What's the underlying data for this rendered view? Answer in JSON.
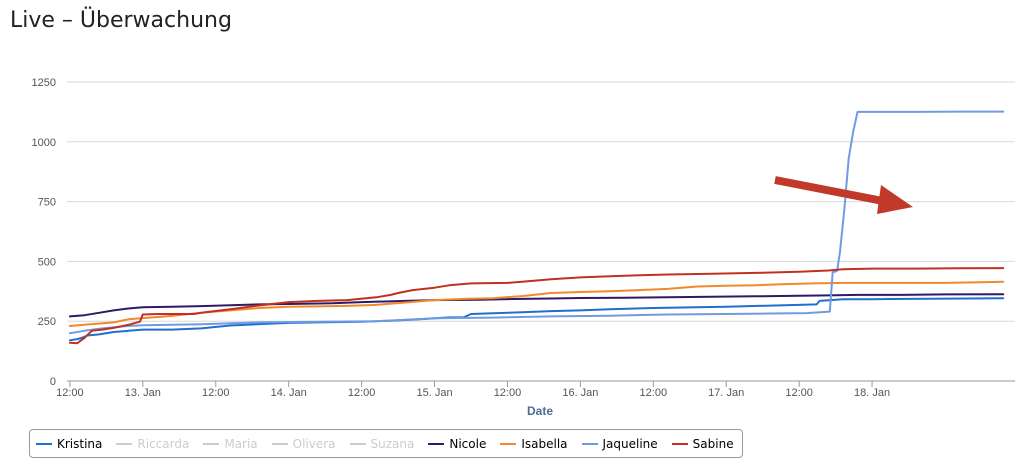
{
  "page": {
    "title": "Live – Überwachung"
  },
  "chart_data": {
    "type": "line",
    "xlabel": "Date",
    "ylabel": "",
    "ylim": [
      0,
      1300
    ],
    "y_ticks": [
      0,
      250,
      500,
      750,
      1000,
      1250
    ],
    "x_ticks": [
      {
        "t": 12.5,
        "label": "12:00"
      },
      {
        "t": 13.0,
        "label": "13. Jan"
      },
      {
        "t": 13.5,
        "label": "12:00"
      },
      {
        "t": 14.0,
        "label": "14. Jan"
      },
      {
        "t": 14.5,
        "label": "12:00"
      },
      {
        "t": 15.0,
        "label": "15. Jan"
      },
      {
        "t": 15.5,
        "label": "12:00"
      },
      {
        "t": 16.0,
        "label": "16. Jan"
      },
      {
        "t": 16.5,
        "label": "12:00"
      },
      {
        "t": 17.0,
        "label": "17. Jan"
      },
      {
        "t": 17.5,
        "label": "12:00"
      },
      {
        "t": 18.0,
        "label": "18. Jan"
      }
    ],
    "xlim": [
      12.48,
      18.98
    ],
    "grid": true,
    "legend_position": "bottom-left",
    "annotation": "red arrow pointing at the sharp rise of Jaqueline",
    "series": [
      {
        "name": "Kristina",
        "color": "#1f6fd1",
        "visible": true,
        "points": [
          [
            12.5,
            170
          ],
          [
            12.55,
            175
          ],
          [
            12.58,
            180
          ],
          [
            12.62,
            190
          ],
          [
            12.7,
            195
          ],
          [
            12.8,
            205
          ],
          [
            12.9,
            210
          ],
          [
            13.0,
            215
          ],
          [
            13.2,
            215
          ],
          [
            13.4,
            220
          ],
          [
            13.6,
            232
          ],
          [
            13.8,
            238
          ],
          [
            14.0,
            243
          ],
          [
            14.2,
            245
          ],
          [
            14.5,
            248
          ],
          [
            14.7,
            252
          ],
          [
            14.9,
            258
          ],
          [
            15.1,
            266
          ],
          [
            15.2,
            266
          ],
          [
            15.25,
            280
          ],
          [
            15.4,
            283
          ],
          [
            15.6,
            287
          ],
          [
            15.8,
            292
          ],
          [
            16.0,
            295
          ],
          [
            16.2,
            300
          ],
          [
            16.5,
            305
          ],
          [
            16.8,
            308
          ],
          [
            17.0,
            310
          ],
          [
            17.3,
            315
          ],
          [
            17.5,
            318
          ],
          [
            17.62,
            320
          ],
          [
            17.64,
            335
          ],
          [
            17.8,
            342
          ],
          [
            18.0,
            342
          ],
          [
            18.4,
            344
          ],
          [
            18.65,
            345
          ],
          [
            18.9,
            346
          ]
        ]
      },
      {
        "name": "Riccarda",
        "color": "#cccccc",
        "visible": false,
        "points": []
      },
      {
        "name": "Maria",
        "color": "#cccccc",
        "visible": false,
        "points": []
      },
      {
        "name": "Olivera",
        "color": "#cccccc",
        "visible": false,
        "points": []
      },
      {
        "name": "Suzana",
        "color": "#cccccc",
        "visible": false,
        "points": []
      },
      {
        "name": "Nicole",
        "color": "#2e1a66",
        "visible": true,
        "points": [
          [
            12.5,
            270
          ],
          [
            12.6,
            275
          ],
          [
            12.7,
            285
          ],
          [
            12.8,
            295
          ],
          [
            12.9,
            303
          ],
          [
            13.0,
            308
          ],
          [
            13.2,
            310
          ],
          [
            13.4,
            313
          ],
          [
            13.6,
            317
          ],
          [
            13.8,
            320
          ],
          [
            14.0,
            322
          ],
          [
            14.3,
            325
          ],
          [
            14.5,
            330
          ],
          [
            14.8,
            335
          ],
          [
            15.0,
            338
          ],
          [
            15.3,
            340
          ],
          [
            15.6,
            343
          ],
          [
            15.8,
            345
          ],
          [
            16.0,
            347
          ],
          [
            16.3,
            348
          ],
          [
            16.6,
            350
          ],
          [
            16.9,
            352
          ],
          [
            17.2,
            354
          ],
          [
            17.5,
            356
          ],
          [
            17.7,
            358
          ],
          [
            17.9,
            360
          ],
          [
            18.2,
            360
          ],
          [
            18.5,
            362
          ],
          [
            18.9,
            363
          ]
        ]
      },
      {
        "name": "Isabella",
        "color": "#f08a2c",
        "visible": true,
        "points": [
          [
            12.5,
            230
          ],
          [
            12.6,
            235
          ],
          [
            12.8,
            245
          ],
          [
            12.9,
            258
          ],
          [
            13.0,
            263
          ],
          [
            13.2,
            272
          ],
          [
            13.4,
            285
          ],
          [
            13.6,
            295
          ],
          [
            13.8,
            305
          ],
          [
            14.0,
            310
          ],
          [
            14.2,
            312
          ],
          [
            14.4,
            314
          ],
          [
            14.6,
            318
          ],
          [
            14.8,
            328
          ],
          [
            15.0,
            338
          ],
          [
            15.2,
            343
          ],
          [
            15.4,
            346
          ],
          [
            15.6,
            355
          ],
          [
            15.8,
            368
          ],
          [
            16.0,
            372
          ],
          [
            16.2,
            375
          ],
          [
            16.4,
            380
          ],
          [
            16.6,
            385
          ],
          [
            16.8,
            395
          ],
          [
            17.0,
            398
          ],
          [
            17.2,
            400
          ],
          [
            17.4,
            405
          ],
          [
            17.6,
            408
          ],
          [
            17.8,
            410
          ],
          [
            18.0,
            410
          ],
          [
            18.2,
            410
          ],
          [
            18.5,
            410
          ],
          [
            18.7,
            412
          ],
          [
            18.9,
            415
          ]
        ]
      },
      {
        "name": "Jaqueline",
        "color": "#6f9be0",
        "visible": true,
        "points": [
          [
            12.5,
            200
          ],
          [
            12.6,
            210
          ],
          [
            12.7,
            218
          ],
          [
            12.8,
            225
          ],
          [
            12.9,
            230
          ],
          [
            13.0,
            233
          ],
          [
            13.4,
            237
          ],
          [
            13.8,
            245
          ],
          [
            14.2,
            248
          ],
          [
            14.6,
            250
          ],
          [
            15.0,
            262
          ],
          [
            15.4,
            265
          ],
          [
            15.8,
            270
          ],
          [
            16.2,
            273
          ],
          [
            16.6,
            278
          ],
          [
            17.0,
            280
          ],
          [
            17.3,
            282
          ],
          [
            17.55,
            284
          ],
          [
            17.71,
            290
          ],
          [
            17.73,
            455
          ],
          [
            17.76,
            460
          ],
          [
            17.78,
            540
          ],
          [
            17.81,
            720
          ],
          [
            17.84,
            930
          ],
          [
            17.87,
            1040
          ],
          [
            17.9,
            1125
          ],
          [
            18.3,
            1125
          ],
          [
            18.6,
            1126
          ],
          [
            18.9,
            1126
          ]
        ]
      },
      {
        "name": "Sabine",
        "color": "#c0311f",
        "visible": true,
        "points": [
          [
            12.5,
            160
          ],
          [
            12.55,
            158
          ],
          [
            12.6,
            180
          ],
          [
            12.65,
            210
          ],
          [
            12.72,
            215
          ],
          [
            12.8,
            222
          ],
          [
            12.9,
            235
          ],
          [
            12.98,
            248
          ],
          [
            13.0,
            278
          ],
          [
            13.1,
            280
          ],
          [
            13.35,
            280
          ],
          [
            13.4,
            285
          ],
          [
            13.6,
            300
          ],
          [
            13.75,
            312
          ],
          [
            13.9,
            323
          ],
          [
            14.0,
            330
          ],
          [
            14.2,
            335
          ],
          [
            14.4,
            338
          ],
          [
            14.6,
            350
          ],
          [
            14.7,
            360
          ],
          [
            14.75,
            368
          ],
          [
            14.85,
            380
          ],
          [
            15.0,
            390
          ],
          [
            15.1,
            400
          ],
          [
            15.25,
            408
          ],
          [
            15.5,
            410
          ],
          [
            15.6,
            415
          ],
          [
            15.8,
            425
          ],
          [
            16.0,
            433
          ],
          [
            16.3,
            440
          ],
          [
            16.6,
            445
          ],
          [
            16.9,
            448
          ],
          [
            17.2,
            452
          ],
          [
            17.5,
            457
          ],
          [
            17.7,
            462
          ],
          [
            17.8,
            467
          ],
          [
            18.0,
            470
          ],
          [
            18.3,
            470
          ],
          [
            18.6,
            471
          ],
          [
            18.9,
            472
          ]
        ]
      }
    ]
  },
  "legend": {
    "items": [
      {
        "label": "Kristina",
        "color": "#1f6fd1",
        "active": true
      },
      {
        "label": "Riccarda",
        "color": "#cccccc",
        "active": false
      },
      {
        "label": "Maria",
        "color": "#cccccc",
        "active": false
      },
      {
        "label": "Olivera",
        "color": "#cccccc",
        "active": false
      },
      {
        "label": "Suzana",
        "color": "#cccccc",
        "active": false
      },
      {
        "label": "Nicole",
        "color": "#2e1a66",
        "active": true
      },
      {
        "label": "Isabella",
        "color": "#f08a2c",
        "active": true
      },
      {
        "label": "Jaqueline",
        "color": "#6f9be0",
        "active": true
      },
      {
        "label": "Sabine",
        "color": "#c0311f",
        "active": true
      }
    ]
  },
  "colors": {
    "arrow": "#c0392b",
    "grid": "#d8d8d8",
    "axis_title": "#4d6c94",
    "tick_text": "#555555"
  }
}
